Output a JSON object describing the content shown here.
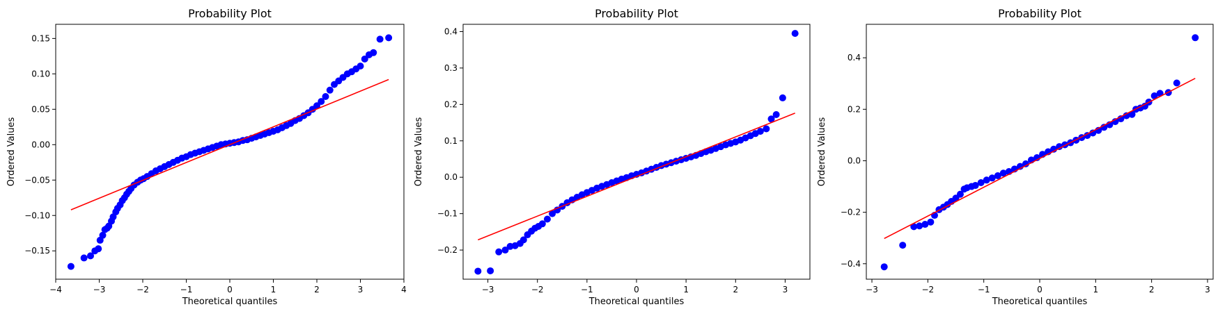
{
  "chart_data": [
    {
      "type": "scatter",
      "title": "Probability Plot",
      "xlabel": "Theoretical quantiles",
      "ylabel": "Ordered Values",
      "xlim": [
        -4,
        4
      ],
      "ylim": [
        -0.19,
        0.17
      ],
      "xticks": [
        -4,
        -3,
        -2,
        -1,
        0,
        1,
        2,
        3,
        4
      ],
      "xtick_labels": [
        "−4",
        "−3",
        "−2",
        "−1",
        "0",
        "1",
        "2",
        "3",
        "4"
      ],
      "yticks": [
        -0.15,
        -0.1,
        -0.05,
        0.0,
        0.05,
        0.1,
        0.15
      ],
      "ytick_labels": [
        "−0.15",
        "−0.10",
        "−0.05",
        "0.00",
        "0.05",
        "0.10",
        "0.15"
      ],
      "fit_line": {
        "x": [
          -3.65,
          3.65
        ],
        "y": [
          -0.092,
          0.092
        ],
        "color": "#ff0000"
      },
      "points_color": "#0000ff",
      "series": [
        {
          "name": "Ordered Values",
          "x": [
            -3.65,
            -3.35,
            -3.2,
            -3.1,
            -3.02,
            -2.98,
            -2.92,
            -2.87,
            -2.82,
            -2.78,
            -2.72,
            -2.68,
            -2.62,
            -2.58,
            -2.52,
            -2.47,
            -2.42,
            -2.37,
            -2.32,
            -2.27,
            -2.2,
            -2.12,
            -2.05,
            -1.98,
            -1.9,
            -1.8,
            -1.7,
            -1.6,
            -1.5,
            -1.4,
            -1.3,
            -1.2,
            -1.1,
            -1.0,
            -0.9,
            -0.8,
            -0.7,
            -0.6,
            -0.5,
            -0.4,
            -0.3,
            -0.2,
            -0.1,
            0.0,
            0.1,
            0.2,
            0.3,
            0.4,
            0.5,
            0.6,
            0.7,
            0.8,
            0.9,
            1.0,
            1.1,
            1.2,
            1.3,
            1.4,
            1.5,
            1.6,
            1.7,
            1.8,
            1.9,
            2.0,
            2.1,
            2.2,
            2.3,
            2.4,
            2.5,
            2.6,
            2.7,
            2.8,
            2.9,
            3.0,
            3.1,
            3.2,
            3.3,
            3.45,
            3.65
          ],
          "y": [
            -0.172,
            -0.16,
            -0.157,
            -0.15,
            -0.147,
            -0.135,
            -0.128,
            -0.12,
            -0.118,
            -0.115,
            -0.108,
            -0.102,
            -0.095,
            -0.09,
            -0.085,
            -0.079,
            -0.075,
            -0.07,
            -0.066,
            -0.062,
            -0.057,
            -0.053,
            -0.05,
            -0.048,
            -0.045,
            -0.041,
            -0.037,
            -0.034,
            -0.031,
            -0.028,
            -0.025,
            -0.022,
            -0.019,
            -0.017,
            -0.014,
            -0.012,
            -0.01,
            -0.008,
            -0.006,
            -0.004,
            -0.002,
            0.0,
            0.001,
            0.002,
            0.003,
            0.004,
            0.006,
            0.007,
            0.009,
            0.011,
            0.013,
            0.015,
            0.017,
            0.019,
            0.021,
            0.024,
            0.027,
            0.03,
            0.034,
            0.037,
            0.041,
            0.045,
            0.05,
            0.055,
            0.061,
            0.068,
            0.077,
            0.085,
            0.09,
            0.095,
            0.1,
            0.103,
            0.107,
            0.111,
            0.121,
            0.127,
            0.13,
            0.149,
            0.151
          ]
        }
      ]
    },
    {
      "type": "scatter",
      "title": "Probability Plot",
      "xlabel": "Theoretical quantiles",
      "ylabel": "Ordered Values",
      "xlim": [
        -3.5,
        3.5
      ],
      "ylim": [
        -0.28,
        0.42
      ],
      "xticks": [
        -3,
        -2,
        -1,
        0,
        1,
        2,
        3
      ],
      "xtick_labels": [
        "−3",
        "−2",
        "−1",
        "0",
        "1",
        "2",
        "3"
      ],
      "yticks": [
        -0.2,
        -0.1,
        0.0,
        0.1,
        0.2,
        0.3,
        0.4
      ],
      "ytick_labels": [
        "−0.2",
        "−0.1",
        "0.0",
        "0.1",
        "0.2",
        "0.3",
        "0.4"
      ],
      "fit_line": {
        "x": [
          -3.2,
          3.2
        ],
        "y": [
          -0.172,
          0.176
        ],
        "color": "#ff0000"
      },
      "points_color": "#0000ff",
      "series": [
        {
          "name": "Ordered Values",
          "x": [
            -3.2,
            -2.95,
            -2.78,
            -2.65,
            -2.55,
            -2.45,
            -2.35,
            -2.28,
            -2.2,
            -2.12,
            -2.05,
            -1.98,
            -1.9,
            -1.8,
            -1.7,
            -1.6,
            -1.5,
            -1.4,
            -1.3,
            -1.2,
            -1.1,
            -1.0,
            -0.9,
            -0.8,
            -0.7,
            -0.6,
            -0.5,
            -0.4,
            -0.3,
            -0.2,
            -0.1,
            0.0,
            0.1,
            0.2,
            0.3,
            0.4,
            0.5,
            0.6,
            0.7,
            0.8,
            0.9,
            1.0,
            1.1,
            1.2,
            1.3,
            1.4,
            1.5,
            1.6,
            1.7,
            1.8,
            1.9,
            2.0,
            2.1,
            2.2,
            2.3,
            2.4,
            2.5,
            2.62,
            2.72,
            2.82,
            2.95,
            3.2
          ],
          "y": [
            -0.258,
            -0.257,
            -0.205,
            -0.2,
            -0.19,
            -0.188,
            -0.182,
            -0.172,
            -0.158,
            -0.148,
            -0.14,
            -0.135,
            -0.128,
            -0.115,
            -0.1,
            -0.09,
            -0.08,
            -0.07,
            -0.062,
            -0.055,
            -0.048,
            -0.042,
            -0.036,
            -0.03,
            -0.025,
            -0.02,
            -0.015,
            -0.01,
            -0.005,
            -0.001,
            0.004,
            0.008,
            0.012,
            0.017,
            0.022,
            0.027,
            0.032,
            0.036,
            0.04,
            0.044,
            0.048,
            0.052,
            0.056,
            0.06,
            0.065,
            0.07,
            0.074,
            0.079,
            0.084,
            0.089,
            0.093,
            0.097,
            0.102,
            0.108,
            0.114,
            0.12,
            0.126,
            0.133,
            0.16,
            0.172,
            0.218,
            0.395
          ]
        }
      ]
    },
    {
      "type": "scatter",
      "title": "Probability Plot",
      "xlabel": "Theoretical quantiles",
      "ylabel": "Ordered Values",
      "xlim": [
        -3.1,
        3.1
      ],
      "ylim": [
        -0.46,
        0.53
      ],
      "xticks": [
        -3,
        -2,
        -1,
        0,
        1,
        2,
        3
      ],
      "xtick_labels": [
        "−3",
        "−2",
        "−1",
        "0",
        "1",
        "2",
        "3"
      ],
      "yticks": [
        -0.4,
        -0.2,
        0.0,
        0.2,
        0.4
      ],
      "ytick_labels": [
        "−0.4",
        "−0.2",
        "0.0",
        "0.2",
        "0.4"
      ],
      "fit_line": {
        "x": [
          -2.78,
          2.78
        ],
        "y": [
          -0.302,
          0.32
        ],
        "color": "#ff0000"
      },
      "points_color": "#0000ff",
      "series": [
        {
          "name": "Ordered Values",
          "x": [
            -2.78,
            -2.45,
            -2.25,
            -2.15,
            -2.05,
            -1.95,
            -1.88,
            -1.8,
            -1.72,
            -1.65,
            -1.58,
            -1.5,
            -1.42,
            -1.35,
            -1.3,
            -1.22,
            -1.15,
            -1.05,
            -0.95,
            -0.85,
            -0.75,
            -0.65,
            -0.55,
            -0.45,
            -0.35,
            -0.25,
            -0.15,
            -0.05,
            0.05,
            0.15,
            0.25,
            0.35,
            0.45,
            0.55,
            0.65,
            0.75,
            0.85,
            0.95,
            1.05,
            1.15,
            1.25,
            1.35,
            1.45,
            1.55,
            1.65,
            1.72,
            1.8,
            1.88,
            1.95,
            2.05,
            2.15,
            2.3,
            2.45,
            2.78
          ],
          "y": [
            -0.412,
            -0.328,
            -0.256,
            -0.253,
            -0.247,
            -0.238,
            -0.212,
            -0.19,
            -0.18,
            -0.17,
            -0.158,
            -0.145,
            -0.13,
            -0.11,
            -0.105,
            -0.1,
            -0.096,
            -0.085,
            -0.075,
            -0.067,
            -0.058,
            -0.048,
            -0.042,
            -0.032,
            -0.022,
            -0.012,
            0.003,
            0.012,
            0.025,
            0.035,
            0.045,
            0.055,
            0.062,
            0.07,
            0.08,
            0.09,
            0.098,
            0.108,
            0.118,
            0.13,
            0.14,
            0.152,
            0.163,
            0.175,
            0.18,
            0.2,
            0.205,
            0.212,
            0.228,
            0.252,
            0.262,
            0.265,
            0.302,
            0.478
          ]
        }
      ]
    }
  ]
}
